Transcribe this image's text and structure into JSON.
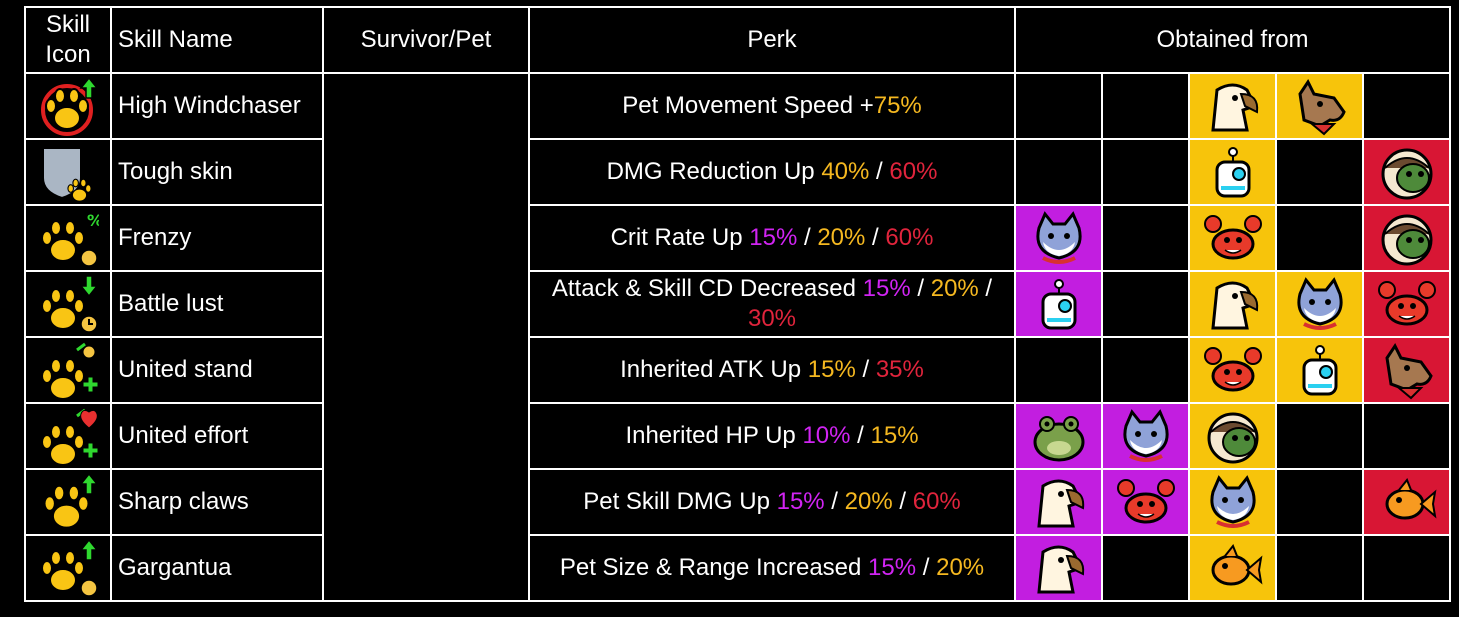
{
  "headers": {
    "icon": "Skill Icon",
    "name": "Skill Name",
    "survivor": "Survivor/Pet",
    "perk": "Perk",
    "obtained": "Obtained from"
  },
  "colors": {
    "purple": "#c21ee0",
    "yellow": "#f7c40b",
    "red": "#d81634"
  },
  "rows": [
    {
      "icon": "paw-windchaser-icon",
      "name": "High Windchaser",
      "perk_segments": [
        {
          "text": "Pet Movement Speed +",
          "color": "white"
        },
        {
          "text": "75%",
          "color": "yellow"
        }
      ],
      "obtained": [
        {
          "bg": "none",
          "pet": ""
        },
        {
          "bg": "none",
          "pet": ""
        },
        {
          "bg": "yellow",
          "pet": "eagle-pet-icon"
        },
        {
          "bg": "yellow",
          "pet": "dog-pet-icon"
        },
        {
          "bg": "none",
          "pet": ""
        }
      ]
    },
    {
      "icon": "paw-shield-icon",
      "name": "Tough skin",
      "perk_segments": [
        {
          "text": "DMG Reduction Up ",
          "color": "white"
        },
        {
          "text": "40%",
          "color": "yellow"
        },
        {
          "text": " / ",
          "color": "white"
        },
        {
          "text": "60%",
          "color": "red"
        }
      ],
      "obtained": [
        {
          "bg": "none",
          "pet": ""
        },
        {
          "bg": "none",
          "pet": ""
        },
        {
          "bg": "yellow",
          "pet": "robot-pet-icon"
        },
        {
          "bg": "none",
          "pet": ""
        },
        {
          "bg": "red",
          "pet": "turtle-pet-icon"
        }
      ]
    },
    {
      "icon": "paw-crit-icon",
      "name": "Frenzy",
      "perk_segments": [
        {
          "text": "Crit Rate Up ",
          "color": "white"
        },
        {
          "text": "15%",
          "color": "purple"
        },
        {
          "text": " / ",
          "color": "white"
        },
        {
          "text": "20%",
          "color": "yellow"
        },
        {
          "text": " / ",
          "color": "white"
        },
        {
          "text": "60%",
          "color": "red"
        }
      ],
      "obtained": [
        {
          "bg": "purple",
          "pet": "cat-pet-icon"
        },
        {
          "bg": "none",
          "pet": ""
        },
        {
          "bg": "yellow",
          "pet": "crab-pet-icon"
        },
        {
          "bg": "none",
          "pet": ""
        },
        {
          "bg": "red",
          "pet": "turtle-pet-icon"
        }
      ]
    },
    {
      "icon": "paw-cooldown-icon",
      "name": "Battle lust",
      "perk_segments": [
        {
          "text": "Attack & Skill CD Decreased ",
          "color": "white"
        },
        {
          "text": "15%",
          "color": "purple"
        },
        {
          "text": " / ",
          "color": "white"
        },
        {
          "text": "20%",
          "color": "yellow"
        },
        {
          "text": " / ",
          "color": "white"
        },
        {
          "text": "30%",
          "color": "red"
        }
      ],
      "obtained": [
        {
          "bg": "purple",
          "pet": "robot-pet-icon"
        },
        {
          "bg": "none",
          "pet": ""
        },
        {
          "bg": "yellow",
          "pet": "eagle-pet-icon"
        },
        {
          "bg": "yellow",
          "pet": "cat-pet-icon"
        },
        {
          "bg": "red",
          "pet": "crab-pet-icon"
        }
      ]
    },
    {
      "icon": "paw-atk-icon",
      "name": "United stand",
      "perk_segments": [
        {
          "text": "Inherited ATK Up ",
          "color": "white"
        },
        {
          "text": "15%",
          "color": "yellow"
        },
        {
          "text": " / ",
          "color": "white"
        },
        {
          "text": "35%",
          "color": "red"
        }
      ],
      "obtained": [
        {
          "bg": "none",
          "pet": ""
        },
        {
          "bg": "none",
          "pet": ""
        },
        {
          "bg": "yellow",
          "pet": "crab-pet-icon"
        },
        {
          "bg": "yellow",
          "pet": "robot-pet-icon"
        },
        {
          "bg": "red",
          "pet": "dog-pet-icon"
        }
      ]
    },
    {
      "icon": "paw-hp-icon",
      "name": "United effort",
      "perk_segments": [
        {
          "text": "Inherited HP Up ",
          "color": "white"
        },
        {
          "text": "10%",
          "color": "purple"
        },
        {
          "text": " / ",
          "color": "white"
        },
        {
          "text": "15%",
          "color": "yellow"
        }
      ],
      "obtained": [
        {
          "bg": "purple",
          "pet": "frog-pet-icon"
        },
        {
          "bg": "purple",
          "pet": "cat-pet-icon"
        },
        {
          "bg": "yellow",
          "pet": "turtle-pet-icon"
        },
        {
          "bg": "none",
          "pet": ""
        },
        {
          "bg": "none",
          "pet": ""
        }
      ]
    },
    {
      "icon": "paw-claws-icon",
      "name": "Sharp claws",
      "perk_segments": [
        {
          "text": "Pet Skill DMG Up ",
          "color": "white"
        },
        {
          "text": "15%",
          "color": "purple"
        },
        {
          "text": " / ",
          "color": "white"
        },
        {
          "text": "20%",
          "color": "yellow"
        },
        {
          "text": " / ",
          "color": "white"
        },
        {
          "text": "60%",
          "color": "red"
        }
      ],
      "obtained": [
        {
          "bg": "purple",
          "pet": "eagle-pet-icon"
        },
        {
          "bg": "purple",
          "pet": "crab-pet-icon"
        },
        {
          "bg": "yellow",
          "pet": "cat-pet-icon"
        },
        {
          "bg": "none",
          "pet": ""
        },
        {
          "bg": "red",
          "pet": "goldfish-pet-icon"
        }
      ]
    },
    {
      "icon": "paw-size-icon",
      "name": "Gargantua",
      "perk_segments": [
        {
          "text": "Pet Size & Range Increased ",
          "color": "white"
        },
        {
          "text": "15% ",
          "color": "purple"
        },
        {
          "text": " / ",
          "color": "white"
        },
        {
          "text": "20%",
          "color": "yellow"
        }
      ],
      "obtained": [
        {
          "bg": "purple",
          "pet": "eagle-pet-icon"
        },
        {
          "bg": "none",
          "pet": ""
        },
        {
          "bg": "yellow",
          "pet": "goldfish-pet-icon"
        },
        {
          "bg": "none",
          "pet": ""
        },
        {
          "bg": "none",
          "pet": ""
        }
      ]
    }
  ]
}
